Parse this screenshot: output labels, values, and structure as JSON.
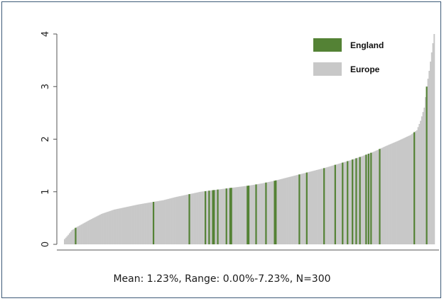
{
  "chart_data": {
    "type": "bar",
    "title": "",
    "xlabel": "",
    "ylabel": "",
    "ylim": [
      0,
      4
    ],
    "y_ticks": [
      "0",
      "1",
      "2",
      "3",
      "4"
    ],
    "grid": false,
    "legend_position": "top-right",
    "n": 300,
    "series": [
      {
        "name": "England",
        "color": "#548235"
      },
      {
        "name": "Europe",
        "color": "#c8c8c8"
      }
    ],
    "anchor_curve": [
      [
        0,
        0.1
      ],
      [
        3,
        0.18
      ],
      [
        6,
        0.27
      ],
      [
        10,
        0.33
      ],
      [
        20,
        0.46
      ],
      [
        30,
        0.58
      ],
      [
        40,
        0.66
      ],
      [
        50,
        0.71
      ],
      [
        60,
        0.76
      ],
      [
        70,
        0.8
      ],
      [
        80,
        0.84
      ],
      [
        90,
        0.9
      ],
      [
        100,
        0.95
      ],
      [
        110,
        1.0
      ],
      [
        120,
        1.03
      ],
      [
        130,
        1.06
      ],
      [
        140,
        1.09
      ],
      [
        150,
        1.12
      ],
      [
        160,
        1.16
      ],
      [
        170,
        1.21
      ],
      [
        180,
        1.27
      ],
      [
        190,
        1.33
      ],
      [
        200,
        1.39
      ],
      [
        210,
        1.45
      ],
      [
        220,
        1.52
      ],
      [
        230,
        1.59
      ],
      [
        240,
        1.67
      ],
      [
        250,
        1.76
      ],
      [
        260,
        1.87
      ],
      [
        270,
        1.97
      ],
      [
        280,
        2.08
      ],
      [
        285,
        2.17
      ],
      [
        288,
        2.35
      ],
      [
        291,
        2.6
      ],
      [
        293,
        3.0
      ],
      [
        295,
        3.3
      ],
      [
        297,
        3.65
      ],
      [
        299,
        4.0
      ]
    ],
    "england_indices": [
      9,
      72,
      101,
      114,
      117,
      120,
      121,
      124,
      131,
      134,
      135,
      148,
      149,
      155,
      163,
      170,
      171,
      190,
      196,
      210,
      219,
      225,
      229,
      233,
      236,
      239,
      244,
      246,
      248,
      255,
      283,
      293
    ]
  },
  "caption": "Mean: 1.23%, Range: 0.00%-7.23%, N=300"
}
